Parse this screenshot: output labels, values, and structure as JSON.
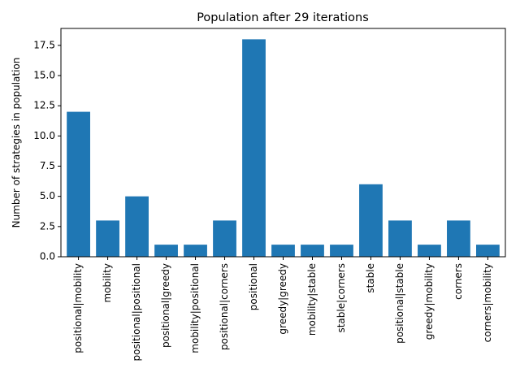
{
  "chart_data": {
    "type": "bar",
    "title": "Population after 29 iterations",
    "xlabel": "",
    "ylabel": "Number of strategies in population",
    "categories": [
      "positional|mobility",
      "mobility",
      "positional|positional",
      "positional|greedy",
      "mobility|positional",
      "positional|corners",
      "positional",
      "greedy|greedy",
      "mobility|stable",
      "stable|corners",
      "stable",
      "positional|stable",
      "greedy|mobility",
      "corners",
      "corners|mobility"
    ],
    "values": [
      12,
      3,
      5,
      1,
      1,
      3,
      18,
      1,
      1,
      1,
      6,
      3,
      1,
      3,
      1
    ],
    "ylim": [
      0,
      18.9
    ],
    "yticks": [
      0.0,
      2.5,
      5.0,
      7.5,
      10.0,
      12.5,
      15.0,
      17.5
    ],
    "ytick_labels": [
      "0.0",
      "2.5",
      "5.0",
      "7.5",
      "10.0",
      "12.5",
      "15.0",
      "17.5"
    ],
    "bar_color": "#1f77b4",
    "grid": false,
    "legend": "none"
  }
}
